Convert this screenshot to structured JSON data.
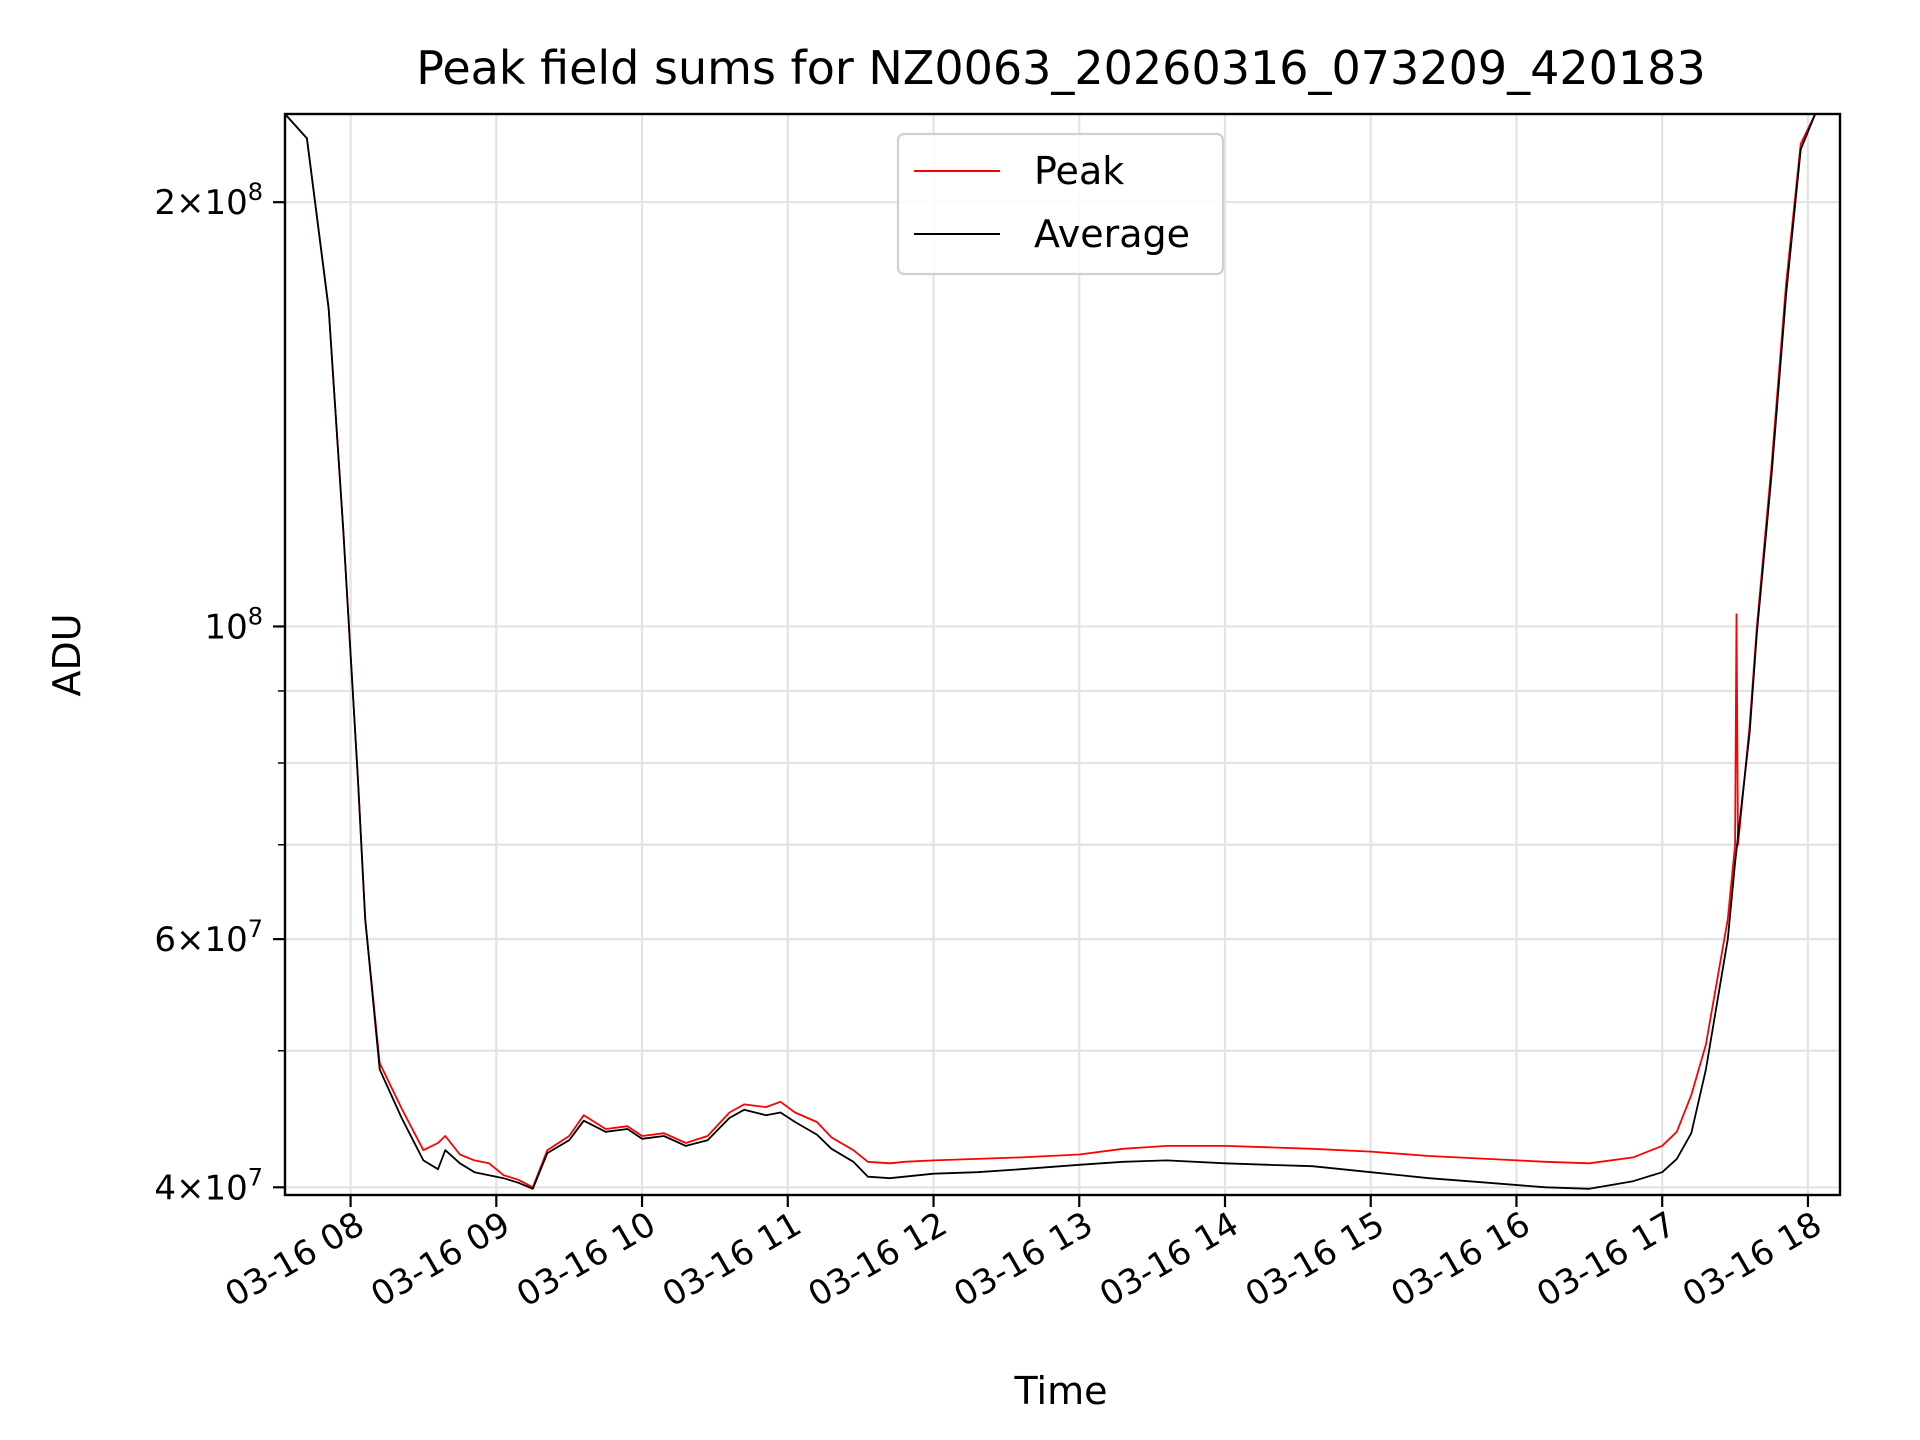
{
  "chart_data": {
    "type": "line",
    "title": "Peak field sums for NZ0063_20260316_073209_420183",
    "xlabel": "Time",
    "ylabel": "ADU",
    "x_unit": "hour of day 2026-03-16",
    "x_tick_labels": [
      "03-16 08",
      "03-16 09",
      "03-16 10",
      "03-16 11",
      "03-16 12",
      "03-16 13",
      "03-16 14",
      "03-16 15",
      "03-16 16",
      "03-16 17",
      "03-16 18"
    ],
    "x_tick_values": [
      8,
      9,
      10,
      11,
      12,
      13,
      14,
      15,
      16,
      17,
      18
    ],
    "xlim": [
      7.55,
      18.22
    ],
    "yscale": "log",
    "ylim": [
      39500000,
      231000000
    ],
    "y_ticks": [
      {
        "value": 40000000,
        "mantissa": "4",
        "base": "10",
        "exponent": "7"
      },
      {
        "value": 60000000,
        "mantissa": "6",
        "base": "10",
        "exponent": "7"
      },
      {
        "value": 100000000,
        "mantissa": "",
        "base": "10",
        "exponent": "8"
      },
      {
        "value": 200000000,
        "mantissa": "2",
        "base": "10",
        "exponent": "8"
      }
    ],
    "y_minor_ticks": [
      50000000,
      70000000,
      80000000,
      90000000
    ],
    "grid": true,
    "legend": {
      "location": "upper center",
      "entries": [
        {
          "label": "Peak",
          "color": "#ff0000"
        },
        {
          "label": "Average",
          "color": "#000000"
        }
      ]
    },
    "series": [
      {
        "name": "Peak",
        "color": "#ff0000",
        "x": [
          7.55,
          7.7,
          7.85,
          7.95,
          8.05,
          8.1,
          8.2,
          8.35,
          8.5,
          8.6,
          8.65,
          8.75,
          8.85,
          8.95,
          9.05,
          9.15,
          9.25,
          9.35,
          9.5,
          9.6,
          9.75,
          9.9,
          10.0,
          10.15,
          10.3,
          10.45,
          10.6,
          10.7,
          10.85,
          10.95,
          11.05,
          11.2,
          11.3,
          11.45,
          11.55,
          11.7,
          11.8,
          12.0,
          12.3,
          12.6,
          13.0,
          13.3,
          13.6,
          14.0,
          14.3,
          14.6,
          15.0,
          15.4,
          15.8,
          16.2,
          16.5,
          16.8,
          17.0,
          17.1,
          17.2,
          17.3,
          17.45,
          17.5,
          17.51,
          17.52,
          17.6,
          17.65,
          17.75,
          17.85,
          17.95,
          18.05,
          18.22
        ],
        "values": [
          231000000,
          222000000,
          168000000,
          117000000,
          78000000,
          62000000,
          49000000,
          45500000,
          42500000,
          43000000,
          43500000,
          42200000,
          41800000,
          41600000,
          40800000,
          40500000,
          40000000,
          42500000,
          43500000,
          45000000,
          44000000,
          44200000,
          43500000,
          43700000,
          43000000,
          43500000,
          45200000,
          45800000,
          45600000,
          46000000,
          45200000,
          44500000,
          43400000,
          42500000,
          41700000,
          41600000,
          41700000,
          41800000,
          41900000,
          42000000,
          42200000,
          42600000,
          42800000,
          42800000,
          42700000,
          42600000,
          42400000,
          42100000,
          41900000,
          41700000,
          41600000,
          42000000,
          42800000,
          43800000,
          46500000,
          50500000,
          62000000,
          70000000,
          102000000,
          70000000,
          85000000,
          100000000,
          130000000,
          175000000,
          220000000,
          231000000,
          231000000
        ]
      },
      {
        "name": "Average",
        "color": "#000000",
        "x": [
          7.55,
          7.7,
          7.85,
          7.95,
          8.05,
          8.1,
          8.2,
          8.35,
          8.5,
          8.6,
          8.65,
          8.75,
          8.85,
          8.95,
          9.05,
          9.15,
          9.25,
          9.35,
          9.5,
          9.6,
          9.75,
          9.9,
          10.0,
          10.15,
          10.3,
          10.45,
          10.6,
          10.7,
          10.85,
          10.95,
          11.05,
          11.2,
          11.3,
          11.45,
          11.55,
          11.7,
          11.8,
          12.0,
          12.3,
          12.6,
          13.0,
          13.3,
          13.6,
          14.0,
          14.3,
          14.6,
          15.0,
          15.4,
          15.8,
          16.2,
          16.5,
          16.8,
          17.0,
          17.1,
          17.2,
          17.3,
          17.45,
          17.5,
          17.6,
          17.65,
          17.75,
          17.85,
          17.95,
          18.05,
          18.22
        ],
        "values": [
          231000000,
          222000000,
          168000000,
          117000000,
          78000000,
          62000000,
          48500000,
          44800000,
          41800000,
          41200000,
          42500000,
          41600000,
          41000000,
          40800000,
          40600000,
          40300000,
          39900000,
          42300000,
          43200000,
          44600000,
          43800000,
          44000000,
          43300000,
          43500000,
          42800000,
          43200000,
          44800000,
          45400000,
          45000000,
          45200000,
          44500000,
          43600000,
          42600000,
          41700000,
          40700000,
          40600000,
          40700000,
          40900000,
          41000000,
          41200000,
          41500000,
          41700000,
          41800000,
          41600000,
          41500000,
          41400000,
          41000000,
          40600000,
          40300000,
          40000000,
          39900000,
          40400000,
          41000000,
          41900000,
          43700000,
          48500000,
          60000000,
          68000000,
          84000000,
          99000000,
          128000000,
          172000000,
          218000000,
          231000000,
          231000000
        ]
      }
    ]
  }
}
